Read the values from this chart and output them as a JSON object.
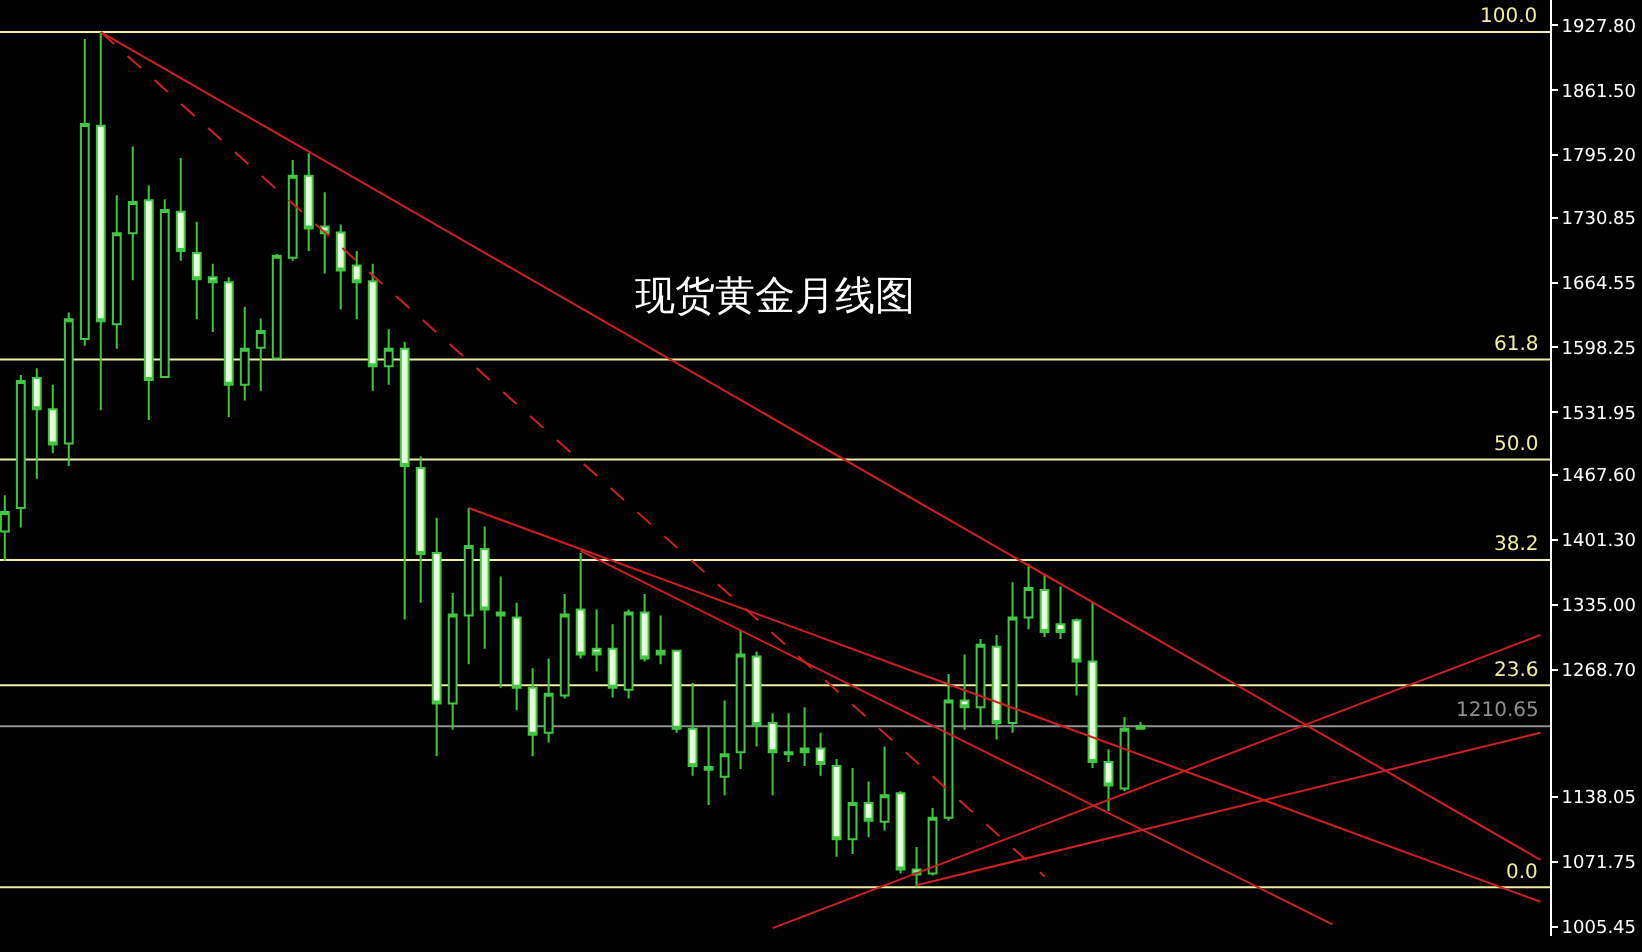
{
  "chart_data": {
    "type": "candlestick",
    "title": "现货黄金月线图",
    "categories": [
      null,
      null,
      null,
      null,
      null,
      null,
      null,
      null,
      null,
      null,
      null,
      null,
      null,
      null,
      null,
      null,
      null,
      null,
      null,
      null,
      null,
      null,
      null,
      null,
      null,
      null,
      null,
      null,
      null,
      null,
      null,
      null,
      null,
      null,
      null,
      null,
      null,
      null,
      null,
      null,
      null,
      null,
      null,
      null,
      null,
      null,
      null,
      null,
      null,
      null,
      null,
      null,
      null,
      null,
      null,
      null,
      null,
      null,
      null,
      null,
      null,
      null,
      null,
      null,
      null,
      null,
      null,
      null,
      null,
      null,
      null,
      null,
      null,
      null,
      null,
      null,
      null,
      null,
      null,
      null,
      null,
      null,
      null,
      null,
      null,
      null,
      null,
      null,
      null,
      null,
      null,
      null,
      null,
      null,
      null,
      null,
      null
    ],
    "color": "#40c840",
    "ohlc": [
      [
        1410,
        1447,
        1380,
        1430
      ],
      [
        1434,
        1570,
        1414,
        1564
      ],
      [
        1567,
        1577,
        1464,
        1535
      ],
      [
        1535,
        1560,
        1490,
        1499
      ],
      [
        1500,
        1634,
        1477,
        1627
      ],
      [
        1607,
        1914,
        1600,
        1827
      ],
      [
        1825,
        1921,
        1534,
        1625
      ],
      [
        1622,
        1754,
        1597,
        1715
      ],
      [
        1715,
        1804,
        1667,
        1747
      ],
      [
        1749,
        1764,
        1524,
        1565
      ],
      [
        1568,
        1750,
        1567,
        1739
      ],
      [
        1737,
        1792,
        1687,
        1697
      ],
      [
        1695,
        1727,
        1627,
        1668
      ],
      [
        1670,
        1684,
        1614,
        1665
      ],
      [
        1665,
        1670,
        1527,
        1560
      ],
      [
        1560,
        1640,
        1544,
        1597
      ],
      [
        1598,
        1628,
        1554,
        1615
      ],
      [
        1587,
        1694,
        1586,
        1692
      ],
      [
        1690,
        1790,
        1687,
        1774
      ],
      [
        1774,
        1797,
        1697,
        1720
      ],
      [
        1722,
        1757,
        1674,
        1715
      ],
      [
        1716,
        1724,
        1637,
        1677
      ],
      [
        1682,
        1697,
        1627,
        1665
      ],
      [
        1666,
        1684,
        1554,
        1579
      ],
      [
        1579,
        1617,
        1560,
        1597
      ],
      [
        1597,
        1604,
        1320,
        1477
      ],
      [
        1475,
        1487,
        1337,
        1387
      ],
      [
        1388,
        1424,
        1180,
        1234
      ],
      [
        1234,
        1347,
        1207,
        1325
      ],
      [
        1324,
        1434,
        1274,
        1395
      ],
      [
        1392,
        1415,
        1290,
        1330
      ],
      [
        1327,
        1364,
        1250,
        1324
      ],
      [
        1322,
        1337,
        1227,
        1250
      ],
      [
        1250,
        1270,
        1180,
        1202
      ],
      [
        1204,
        1280,
        1194,
        1244
      ],
      [
        1242,
        1346,
        1239,
        1325
      ],
      [
        1330,
        1388,
        1280,
        1284
      ],
      [
        1290,
        1330,
        1267,
        1284
      ],
      [
        1290,
        1315,
        1240,
        1250
      ],
      [
        1248,
        1330,
        1239,
        1327
      ],
      [
        1327,
        1346,
        1277,
        1280
      ],
      [
        1288,
        1324,
        1274,
        1284
      ],
      [
        1288,
        1289,
        1204,
        1208
      ],
      [
        1208,
        1255,
        1160,
        1170
      ],
      [
        1169,
        1210,
        1130,
        1166
      ],
      [
        1159,
        1237,
        1140,
        1182
      ],
      [
        1184,
        1308,
        1167,
        1284
      ],
      [
        1282,
        1287,
        1190,
        1212
      ],
      [
        1214,
        1224,
        1140,
        1184
      ],
      [
        1184,
        1224,
        1174,
        1182
      ],
      [
        1188,
        1230,
        1170,
        1184
      ],
      [
        1188,
        1204,
        1160,
        1172
      ],
      [
        1170,
        1177,
        1077,
        1095
      ],
      [
        1095,
        1168,
        1080,
        1132
      ],
      [
        1132,
        1154,
        1097,
        1114
      ],
      [
        1113,
        1190,
        1104,
        1140
      ],
      [
        1142,
        1144,
        1060,
        1064
      ],
      [
        1064,
        1087,
        1046,
        1059
      ],
      [
        1060,
        1127,
        1058,
        1117
      ],
      [
        1117,
        1264,
        1114,
        1237
      ],
      [
        1237,
        1284,
        1207,
        1230
      ],
      [
        1230,
        1300,
        1210,
        1294
      ],
      [
        1292,
        1304,
        1197,
        1214
      ],
      [
        1214,
        1358,
        1204,
        1322
      ],
      [
        1322,
        1377,
        1310,
        1352
      ],
      [
        1350,
        1367,
        1302,
        1307
      ],
      [
        1315,
        1354,
        1300,
        1307
      ],
      [
        1319,
        1321,
        1242,
        1277
      ],
      [
        1277,
        1337,
        1168,
        1174
      ],
      [
        1174,
        1187,
        1124,
        1150
      ],
      [
        1147,
        1220,
        1144,
        1208
      ],
      [
        1208,
        1215,
        1207,
        1210.65
      ],
      null,
      null,
      null,
      null,
      null,
      null,
      null,
      null,
      null,
      null,
      null,
      null,
      null,
      null,
      null,
      null,
      null,
      null,
      null,
      null,
      null,
      null,
      null,
      null,
      null
    ],
    "series": [
      {
        "type": "line",
        "color": "#d02020",
        "line_style": "solid",
        "values": [
          null,
          null,
          null,
          null,
          null,
          null,
          1921,
          null,
          null,
          null,
          null,
          null,
          null,
          null,
          null,
          null,
          null,
          null,
          null,
          null,
          null,
          null,
          null,
          null,
          null,
          null,
          null,
          null,
          null,
          null,
          null,
          null,
          null,
          null,
          null,
          null,
          null,
          null,
          null,
          null,
          null,
          null,
          null,
          null,
          null,
          null,
          null,
          null,
          null,
          null,
          null,
          null,
          null,
          null,
          null,
          null,
          null,
          null,
          null,
          null,
          null,
          null,
          null,
          null,
          null,
          null,
          null,
          null,
          null,
          null,
          null,
          null,
          null,
          null,
          null,
          null,
          null,
          null,
          null,
          null,
          null,
          null,
          null,
          null,
          null,
          null,
          null,
          null,
          null,
          null,
          null,
          null,
          null,
          null,
          null,
          null,
          1074
        ]
      },
      {
        "type": "line",
        "color": "#d02020",
        "line_style": "dashed",
        "values": [
          null,
          null,
          null,
          null,
          null,
          null,
          1921,
          null,
          null,
          null,
          null,
          null,
          null,
          null,
          null,
          null,
          null,
          null,
          null,
          null,
          null,
          null,
          null,
          null,
          null,
          null,
          null,
          null,
          null,
          null,
          null,
          null,
          null,
          null,
          null,
          null,
          null,
          null,
          null,
          null,
          null,
          null,
          null,
          null,
          null,
          null,
          null,
          null,
          null,
          null,
          null,
          null,
          null,
          null,
          null,
          null,
          null,
          null,
          null,
          null,
          null,
          null,
          null,
          null,
          null,
          1057,
          null,
          null,
          null,
          null,
          null,
          null,
          null,
          null,
          null,
          null,
          null,
          null,
          null,
          null,
          null,
          null,
          null,
          null,
          null,
          null,
          null,
          null,
          null,
          null,
          null,
          null,
          null,
          null,
          null,
          null,
          null
        ]
      },
      {
        "type": "line",
        "color": "#d02020",
        "line_style": "solid",
        "values": [
          null,
          null,
          null,
          null,
          null,
          null,
          null,
          null,
          null,
          null,
          null,
          null,
          null,
          null,
          null,
          null,
          null,
          null,
          null,
          null,
          null,
          null,
          null,
          null,
          null,
          null,
          null,
          null,
          null,
          1434,
          null,
          null,
          null,
          null,
          null,
          null,
          null,
          null,
          null,
          null,
          null,
          null,
          null,
          null,
          null,
          null,
          null,
          null,
          null,
          null,
          null,
          null,
          null,
          null,
          null,
          null,
          null,
          null,
          null,
          null,
          null,
          null,
          null,
          null,
          null,
          null,
          null,
          null,
          null,
          null,
          null,
          null,
          null,
          null,
          null,
          null,
          null,
          null,
          null,
          null,
          null,
          null,
          null,
          null,
          null,
          null,
          null,
          null,
          null,
          null,
          null,
          null,
          null,
          null,
          null,
          null,
          1031
        ]
      },
      {
        "type": "line",
        "color": "#d02020",
        "line_style": "solid",
        "values": [
          null,
          null,
          null,
          null,
          null,
          null,
          null,
          null,
          null,
          null,
          null,
          null,
          null,
          null,
          null,
          null,
          null,
          null,
          null,
          null,
          null,
          null,
          null,
          null,
          null,
          null,
          null,
          null,
          null,
          null,
          null,
          null,
          null,
          null,
          null,
          null,
          1390,
          null,
          null,
          null,
          null,
          null,
          null,
          null,
          null,
          null,
          null,
          null,
          null,
          null,
          null,
          null,
          null,
          null,
          null,
          null,
          null,
          null,
          null,
          null,
          null,
          null,
          null,
          null,
          null,
          null,
          null,
          null,
          null,
          null,
          null,
          null,
          null,
          null,
          null,
          null,
          null,
          null,
          null,
          null,
          null,
          null,
          null,
          1008,
          null,
          null,
          null,
          null,
          null,
          null,
          null,
          null,
          null,
          null,
          null,
          null,
          null
        ]
      },
      {
        "type": "line",
        "color": "#d02020",
        "line_style": "solid",
        "values": [
          null,
          null,
          null,
          null,
          null,
          null,
          null,
          null,
          null,
          null,
          null,
          null,
          null,
          null,
          null,
          null,
          null,
          null,
          null,
          null,
          null,
          null,
          null,
          null,
          null,
          null,
          null,
          null,
          null,
          null,
          null,
          null,
          null,
          null,
          null,
          null,
          null,
          null,
          null,
          null,
          null,
          null,
          null,
          null,
          null,
          null,
          null,
          null,
          1004,
          null,
          null,
          null,
          null,
          null,
          null,
          null,
          null,
          null,
          null,
          null,
          null,
          null,
          null,
          null,
          null,
          null,
          null,
          null,
          null,
          null,
          null,
          null,
          null,
          null,
          null,
          null,
          null,
          null,
          null,
          null,
          null,
          null,
          null,
          null,
          null,
          null,
          null,
          null,
          null,
          null,
          null,
          null,
          null,
          null,
          null,
          null,
          1304
        ]
      },
      {
        "type": "line",
        "color": "#d02020",
        "line_style": "solid",
        "values": [
          null,
          null,
          null,
          null,
          null,
          null,
          null,
          null,
          null,
          null,
          null,
          null,
          null,
          null,
          null,
          null,
          null,
          null,
          null,
          null,
          null,
          null,
          null,
          null,
          null,
          null,
          null,
          null,
          null,
          null,
          null,
          null,
          null,
          null,
          null,
          null,
          null,
          null,
          null,
          null,
          null,
          null,
          null,
          null,
          null,
          null,
          null,
          null,
          null,
          null,
          null,
          null,
          null,
          null,
          null,
          null,
          null,
          1048,
          null,
          null,
          null,
          null,
          null,
          null,
          null,
          null,
          null,
          null,
          null,
          null,
          null,
          null,
          null,
          null,
          null,
          null,
          null,
          null,
          null,
          null,
          null,
          null,
          null,
          null,
          null,
          null,
          null,
          null,
          null,
          null,
          null,
          null,
          null,
          null,
          null,
          null,
          1204
        ]
      }
    ],
    "ref_lines": [
      {
        "axis": "y",
        "value": 1921,
        "color": "#f0f0a0"
      },
      {
        "axis": "y",
        "value": 1586,
        "color": "#f0f0a0"
      },
      {
        "axis": "y",
        "value": 1483.5,
        "color": "#f0f0a0"
      },
      {
        "axis": "y",
        "value": 1380.8,
        "color": "#f0f0a0"
      },
      {
        "axis": "y",
        "value": 1252.5,
        "color": "#f0f0a0"
      },
      {
        "axis": "y",
        "value": 1046,
        "color": "#f0f0a0"
      },
      {
        "axis": "y",
        "value": 1210.65,
        "label": "1210.65",
        "color": "#909090"
      }
    ],
    "annotations": [
      {
        "text": "100.0",
        "y": 1921
      },
      {
        "text": "61.8",
        "y": 1586
      },
      {
        "text": "50.0",
        "y": 1483.5
      },
      {
        "text": "38.2",
        "y": 1380.8
      },
      {
        "text": "23.6",
        "y": 1252.5
      },
      {
        "text": "0.0",
        "y": 1046
      }
    ],
    "ylim": [
      996,
      1953.8
    ],
    "yticks": [
      {
        "value": 1927.8,
        "label": "1927.80"
      },
      {
        "value": 1861.5,
        "label": "1861.50"
      },
      {
        "value": 1795.2,
        "label": "1795.20"
      },
      {
        "value": 1730.85,
        "label": "1730.85"
      },
      {
        "value": 1664.55,
        "label": "1664.55"
      },
      {
        "value": 1598.25,
        "label": "1598.25"
      },
      {
        "value": 1531.95,
        "label": "1531.95"
      },
      {
        "value": 1467.6,
        "label": "1467.60"
      },
      {
        "value": 1401.3,
        "label": "1401.30"
      },
      {
        "value": 1335,
        "label": "1335.00"
      },
      {
        "value": 1268.7,
        "label": "1268.70"
      },
      {
        "value": 1138.05,
        "label": "1138.05"
      },
      {
        "value": 1071.75,
        "label": "1071.75"
      },
      {
        "value": 1005.45,
        "label": "1005.45"
      }
    ],
    "tick_labels": "y",
    "grid": false
  }
}
